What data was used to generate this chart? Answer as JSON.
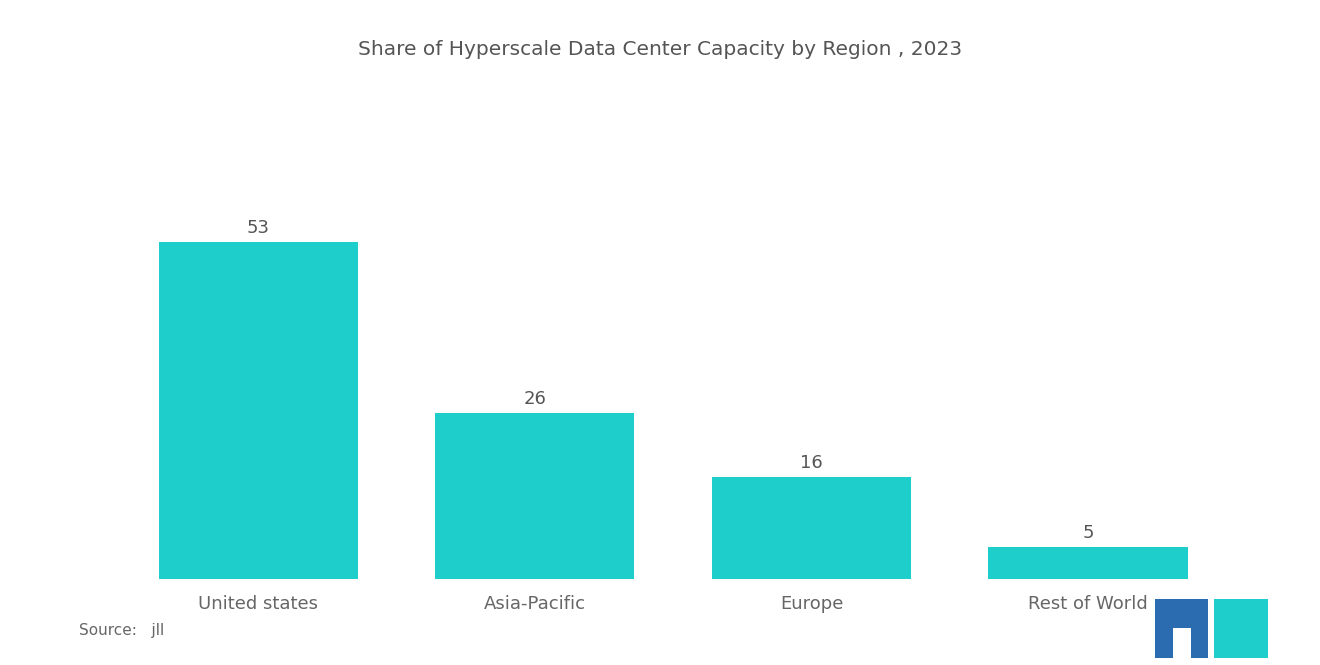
{
  "title": "Share of Hyperscale Data Center Capacity by Region , 2023",
  "categories": [
    "United states",
    "Asia-Pacific",
    "Europe",
    "Rest of World"
  ],
  "values": [
    53,
    26,
    16,
    5
  ],
  "bar_color": "#1ECECA",
  "background_color": "#ffffff",
  "title_fontsize": 14.5,
  "label_fontsize": 13,
  "value_fontsize": 13,
  "source_text": "Source:   jll",
  "ylim": [
    0,
    68
  ],
  "bar_width": 0.72
}
